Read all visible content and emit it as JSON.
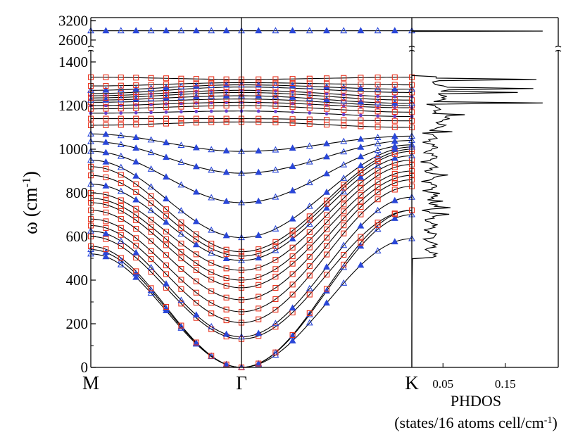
{
  "chart_data": [
    {
      "type": "line",
      "panel": "phonon-dispersion",
      "ylabel_main": "ω (cm",
      "ylabel_sup": "-1",
      "ylabel_close": ")",
      "x_ticks": [
        {
          "label": "M",
          "x": 0.0
        },
        {
          "label": "Γ",
          "x": 1.0
        },
        {
          "label": "K",
          "x": 2.0
        }
      ],
      "ylim": [
        0,
        1400
      ],
      "y_ticks": [
        0,
        200,
        400,
        600,
        800,
        1000,
        1200,
        1400
      ],
      "y_break_ticks": [
        2600,
        3200
      ],
      "y_break_range": [
        2400,
        3300
      ],
      "grid": false,
      "line_color": "#000000",
      "marker_colors": {
        "square": "#e8331e",
        "triangle": "#2a47d8",
        "dot": "#6a3fd0"
      },
      "series": [
        {
          "gamma": 0,
          "m": 520,
          "k": 590,
          "marker": "triangle"
        },
        {
          "gamma": 0,
          "m": 540,
          "k": 700,
          "marker": "triangle"
        },
        {
          "gamma": 0,
          "m": 555,
          "k": 720,
          "marker": "square"
        },
        {
          "gamma": 130,
          "m": 600,
          "k": 720,
          "marker": "square"
        },
        {
          "gamma": 140,
          "m": 625,
          "k": 780,
          "marker": "triangle"
        },
        {
          "gamma": 205,
          "m": 650,
          "k": 830,
          "marker": "square"
        },
        {
          "gamma": 255,
          "m": 680,
          "k": 860,
          "marker": "square"
        },
        {
          "gamma": 310,
          "m": 720,
          "k": 880,
          "marker": "square"
        },
        {
          "gamma": 365,
          "m": 755,
          "k": 900,
          "marker": "square"
        },
        {
          "gamma": 400,
          "m": 775,
          "k": 930,
          "marker": "square"
        },
        {
          "gamma": 445,
          "m": 800,
          "k": 950,
          "marker": "square"
        },
        {
          "gamma": 490,
          "m": 840,
          "k": 970,
          "marker": "triangle"
        },
        {
          "gamma": 510,
          "m": 880,
          "k": 990,
          "marker": "square"
        },
        {
          "gamma": 530,
          "m": 920,
          "k": 1000,
          "marker": "square"
        },
        {
          "gamma": 595,
          "m": 950,
          "k": 1010,
          "marker": "triangle"
        },
        {
          "gamma": 755,
          "m": 990,
          "k": 1020,
          "marker": "triangle"
        },
        {
          "gamma": 890,
          "m": 1035,
          "k": 1040,
          "marker": "triangle"
        },
        {
          "gamma": 990,
          "m": 1070,
          "k": 1060,
          "marker": "triangle"
        },
        {
          "gamma": 1125,
          "m": 1110,
          "k": 1100,
          "marker": "square"
        },
        {
          "gamma": 1140,
          "m": 1140,
          "k": 1130,
          "marker": "square"
        },
        {
          "gamma": 1175,
          "m": 1165,
          "k": 1150,
          "marker": "dot"
        },
        {
          "gamma": 1200,
          "m": 1185,
          "k": 1170,
          "marker": "square"
        },
        {
          "gamma": 1215,
          "m": 1200,
          "k": 1190,
          "marker": "dot"
        },
        {
          "gamma": 1230,
          "m": 1215,
          "k": 1200,
          "marker": "square"
        },
        {
          "gamma": 1245,
          "m": 1225,
          "k": 1210,
          "marker": "triangle"
        },
        {
          "gamma": 1260,
          "m": 1235,
          "k": 1225,
          "marker": "square"
        },
        {
          "gamma": 1270,
          "m": 1245,
          "k": 1240,
          "marker": "dot"
        },
        {
          "gamma": 1285,
          "m": 1255,
          "k": 1260,
          "marker": "square"
        },
        {
          "gamma": 1295,
          "m": 1270,
          "k": 1275,
          "marker": "triangle"
        },
        {
          "gamma": 1305,
          "m": 1290,
          "k": 1295,
          "marker": "square"
        },
        {
          "gamma": 1320,
          "m": 1330,
          "k": 1330,
          "marker": "square"
        },
        {
          "gamma": 2890,
          "m": 2890,
          "k": 2890,
          "marker": "triangle"
        }
      ]
    },
    {
      "type": "line",
      "panel": "phonon-dos",
      "xlabel": "PHDOS",
      "xlabel_units_main": "(states/16 atoms cell/cm",
      "xlabel_units_sup": "-1",
      "xlabel_units_close": ")",
      "x_ticks": [
        "0.05",
        "0.15"
      ],
      "x_tick_values": [
        0.05,
        0.15
      ],
      "xlim": [
        0,
        0.235
      ],
      "ylim": [
        0,
        1400
      ],
      "spikes": [
        {
          "w": 530,
          "d": 0.022
        },
        {
          "w": 580,
          "d": 0.018
        },
        {
          "w": 640,
          "d": 0.032
        },
        {
          "w": 700,
          "d": 0.06
        },
        {
          "w": 730,
          "d": 0.062
        },
        {
          "w": 760,
          "d": 0.05
        },
        {
          "w": 800,
          "d": 0.045
        },
        {
          "w": 880,
          "d": 0.058
        },
        {
          "w": 960,
          "d": 0.04
        },
        {
          "w": 1080,
          "d": 0.065
        },
        {
          "w": 1160,
          "d": 0.085
        },
        {
          "w": 1210,
          "d": 0.21
        },
        {
          "w": 1260,
          "d": 0.17
        },
        {
          "w": 1280,
          "d": 0.195
        },
        {
          "w": 1320,
          "d": 0.2
        },
        {
          "w": 2880,
          "d": 0.21
        }
      ]
    }
  ]
}
